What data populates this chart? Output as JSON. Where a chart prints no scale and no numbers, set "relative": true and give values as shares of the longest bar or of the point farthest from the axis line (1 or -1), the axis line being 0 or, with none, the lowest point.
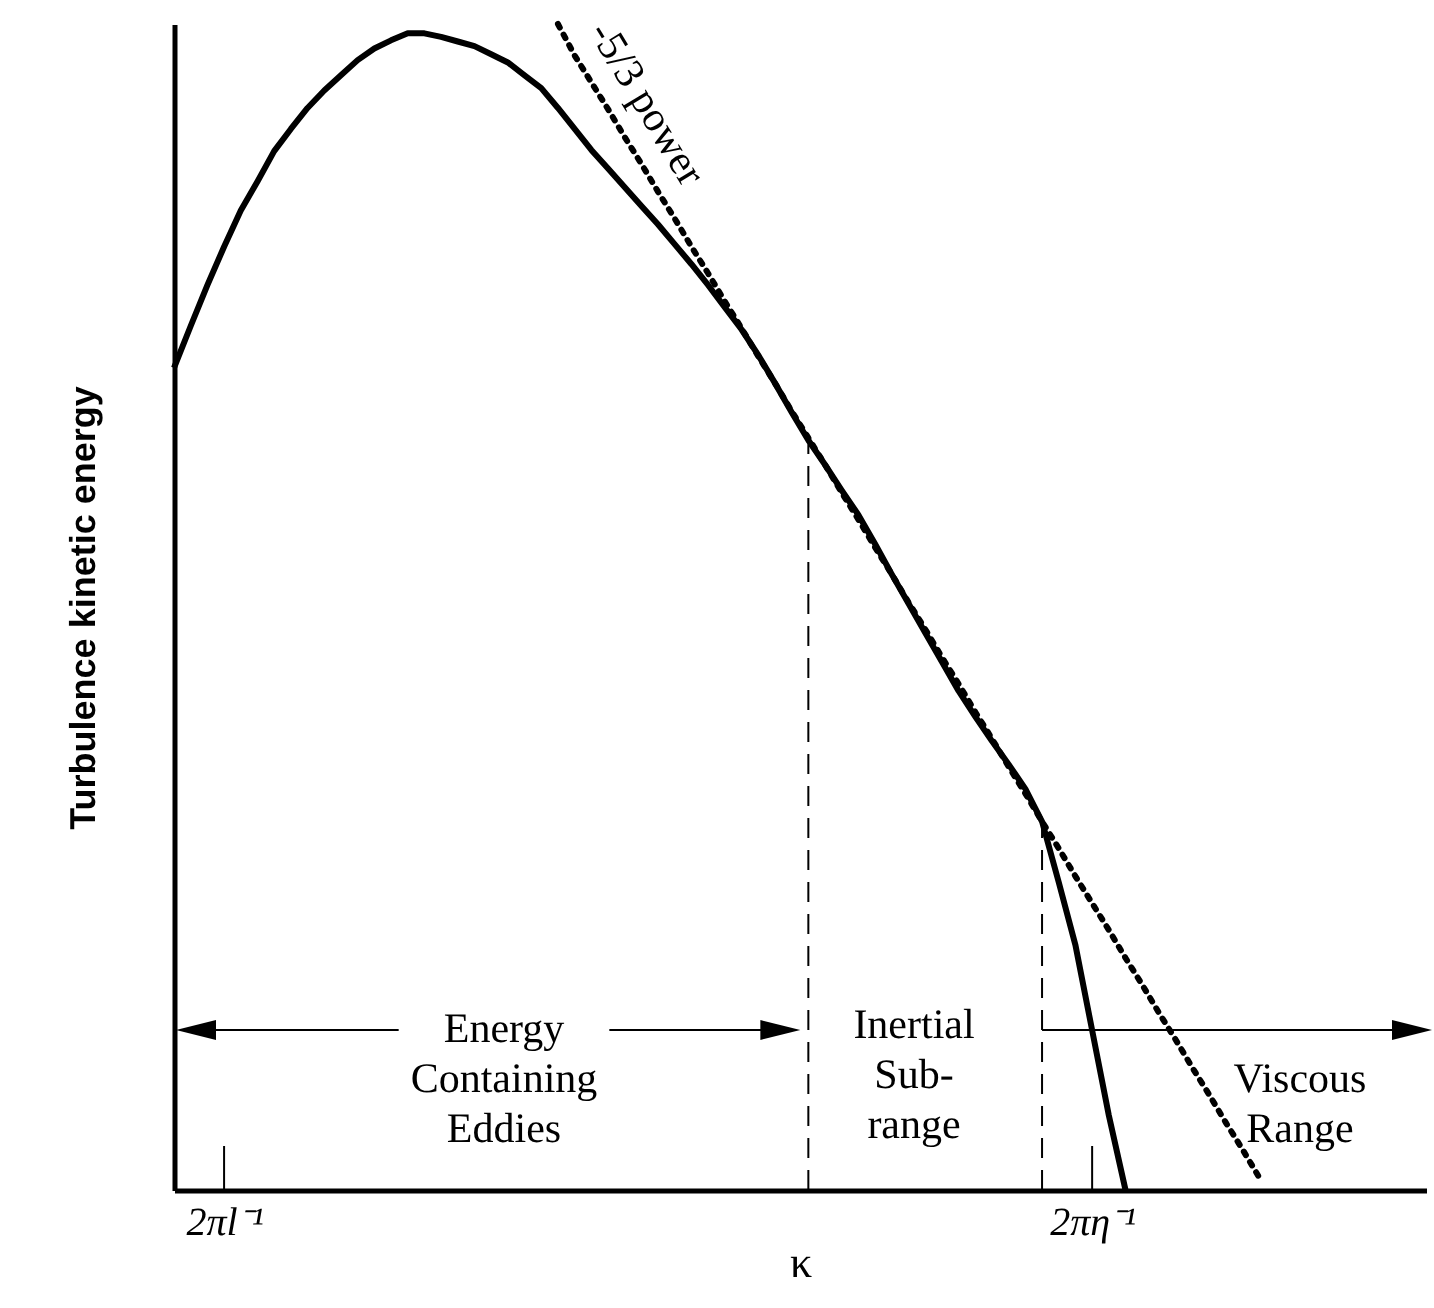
{
  "chart_data": {
    "type": "line",
    "relative": true,
    "xlabel": "κ",
    "ylabel": "Turbulence kinetic energy",
    "categories": [
      null,
      null,
      null,
      "2πl⁻¹",
      null,
      null,
      null,
      null,
      null,
      null,
      null,
      null,
      null,
      null,
      null,
      null,
      null,
      null,
      null,
      null,
      null,
      null,
      null,
      null,
      null,
      null,
      null,
      null,
      null,
      null,
      null,
      null,
      null,
      null,
      null,
      null,
      null,
      null,
      null,
      null,
      null,
      null,
      null,
      null,
      null,
      null,
      null,
      null,
      null,
      null,
      null,
      null,
      null,
      null,
      null,
      "2πη⁻¹",
      null,
      null,
      null,
      null,
      null,
      null,
      null,
      null,
      null,
      null,
      null,
      null,
      null,
      null,
      null,
      null,
      null,
      null,
      null,
      null
    ],
    "series": [
      {
        "color": "#000000",
        "line_style": "solid",
        "values": [
          0.705,
          0.741,
          0.776,
          0.809,
          0.84,
          0.865,
          0.891,
          0.91,
          0.928,
          0.943,
          0.956,
          0.969,
          0.979,
          0.986,
          0.992,
          0.992,
          0.989,
          0.985,
          0.981,
          0.974,
          0.967,
          0.956,
          0.945,
          0.928,
          0.91,
          0.892,
          0.876,
          0.86,
          0.844,
          0.828,
          0.811,
          0.794,
          0.776,
          0.757,
          0.738,
          0.716,
          0.692,
          0.667,
          0.643,
          0.622,
          0.6,
          0.579,
          0.554,
          0.528,
          0.503,
          0.478,
          0.453,
          0.428,
          0.406,
          0.385,
          0.365,
          0.344,
          0.316,
          0.264,
          0.21,
          0.137,
          0.064,
          0,
          null,
          null,
          null,
          null,
          null,
          null,
          null,
          null,
          null,
          null,
          null,
          null,
          null,
          null,
          null,
          null,
          null,
          null
        ]
      },
      {
        "color": "#000000",
        "line_style": "dotted",
        "values": [
          null,
          null,
          null,
          null,
          null,
          null,
          null,
          null,
          null,
          null,
          null,
          null,
          null,
          null,
          null,
          null,
          null,
          null,
          null,
          null,
          null,
          null,
          null,
          1,
          0.973,
          0.95,
          0.927,
          0.903,
          0.88,
          0.856,
          0.833,
          0.809,
          0.786,
          0.762,
          0.739,
          0.715,
          0.692,
          0.668,
          0.645,
          0.622,
          0.598,
          0.575,
          0.551,
          0.528,
          0.504,
          0.481,
          0.457,
          0.434,
          0.41,
          0.387,
          0.363,
          0.34,
          0.316,
          0.293,
          0.269,
          0.246,
          0.223,
          0.199,
          0.176,
          0.152,
          0.129,
          0.105,
          0.082,
          0.058,
          0.035,
          0.011,
          null,
          null,
          null,
          null,
          null,
          null,
          null,
          null,
          null,
          null
        ]
      }
    ],
    "annotations": [
      "Energy\nContaining\nEddies",
      "Inertial\nSub-\nrange",
      "Viscous\nRange",
      "-5/3 power"
    ]
  }
}
